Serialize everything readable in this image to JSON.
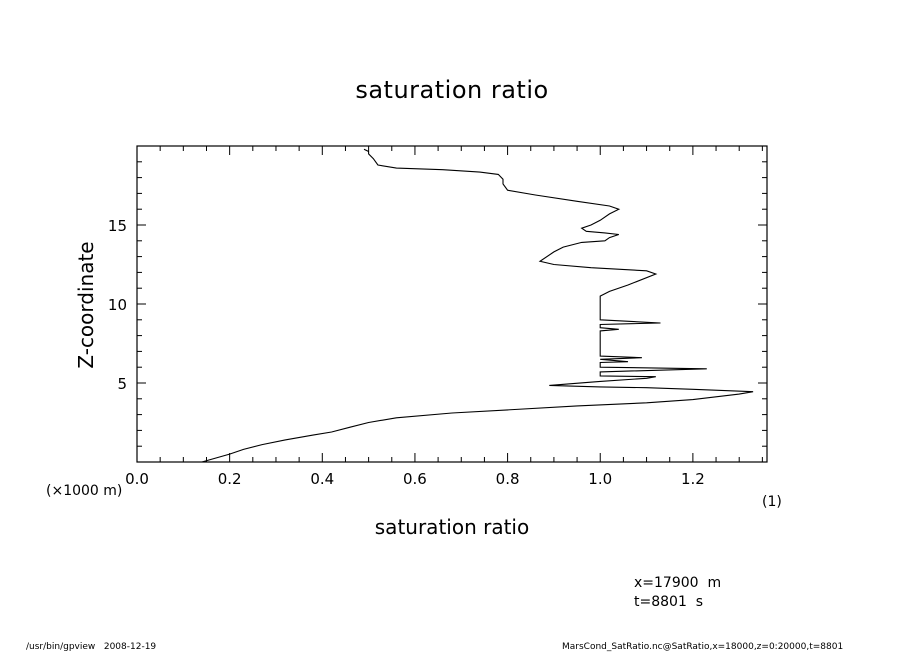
{
  "chart_data": {
    "type": "line",
    "title": "saturation ratio",
    "xlabel": "saturation ratio",
    "ylabel": "Z-coordinate",
    "x_unit": "(1)",
    "y_unit": "(×1000 m)",
    "xlim": [
      0.0,
      1.36
    ],
    "ylim": [
      0.0,
      20.0
    ],
    "x_ticks": [
      "0.0",
      "0.2",
      "0.4",
      "0.6",
      "0.8",
      "1.0",
      "1.2"
    ],
    "y_ticks": [
      "5",
      "10",
      "15"
    ],
    "grid": false,
    "series": [
      {
        "color": "#000000",
        "points": [
          [
            0.14,
            0.0
          ],
          [
            0.2,
            0.5
          ],
          [
            0.23,
            0.8
          ],
          [
            0.27,
            1.1
          ],
          [
            0.32,
            1.4
          ],
          [
            0.38,
            1.7
          ],
          [
            0.42,
            1.9
          ],
          [
            0.46,
            2.2
          ],
          [
            0.5,
            2.5
          ],
          [
            0.56,
            2.8
          ],
          [
            0.68,
            3.1
          ],
          [
            0.8,
            3.3
          ],
          [
            0.95,
            3.55
          ],
          [
            1.1,
            3.75
          ],
          [
            1.2,
            3.95
          ],
          [
            1.3,
            4.3
          ],
          [
            1.33,
            4.45
          ],
          [
            1.2,
            4.6
          ],
          [
            1.1,
            4.7
          ],
          [
            1.0,
            4.75
          ],
          [
            0.89,
            4.85
          ],
          [
            1.0,
            5.1
          ],
          [
            1.1,
            5.3
          ],
          [
            1.12,
            5.4
          ],
          [
            1.0,
            5.45
          ],
          [
            1.0,
            5.7
          ],
          [
            1.23,
            5.9
          ],
          [
            1.0,
            6.0
          ],
          [
            1.0,
            6.3
          ],
          [
            1.06,
            6.35
          ],
          [
            1.0,
            6.5
          ],
          [
            1.09,
            6.6
          ],
          [
            1.0,
            6.7
          ],
          [
            1.0,
            8.3
          ],
          [
            1.04,
            8.4
          ],
          [
            1.0,
            8.5
          ],
          [
            1.0,
            8.7
          ],
          [
            1.13,
            8.8
          ],
          [
            1.0,
            9.0
          ],
          [
            1.0,
            10.5
          ],
          [
            1.02,
            10.8
          ],
          [
            1.06,
            11.2
          ],
          [
            1.12,
            11.9
          ],
          [
            1.1,
            12.1
          ],
          [
            0.98,
            12.3
          ],
          [
            0.9,
            12.5
          ],
          [
            0.87,
            12.7
          ],
          [
            0.9,
            13.3
          ],
          [
            0.92,
            13.6
          ],
          [
            0.96,
            13.9
          ],
          [
            1.01,
            14.0
          ],
          [
            1.02,
            14.2
          ],
          [
            1.04,
            14.4
          ],
          [
            1.01,
            14.5
          ],
          [
            0.97,
            14.6
          ],
          [
            0.96,
            14.8
          ],
          [
            0.98,
            15.0
          ],
          [
            1.0,
            15.3
          ],
          [
            1.02,
            15.7
          ],
          [
            1.04,
            16.0
          ],
          [
            1.02,
            16.2
          ],
          [
            0.95,
            16.5
          ],
          [
            0.86,
            16.9
          ],
          [
            0.8,
            17.2
          ],
          [
            0.79,
            17.6
          ],
          [
            0.79,
            17.9
          ],
          [
            0.78,
            18.2
          ],
          [
            0.74,
            18.35
          ],
          [
            0.66,
            18.5
          ],
          [
            0.56,
            18.6
          ],
          [
            0.52,
            18.8
          ],
          [
            0.51,
            19.2
          ],
          [
            0.5,
            19.5
          ],
          [
            0.5,
            19.65
          ],
          [
            0.49,
            19.8
          ]
        ]
      }
    ]
  },
  "annotations": {
    "info_x": "x=17900  m",
    "info_t": "t=8801  s"
  },
  "footer": {
    "left": "/usr/bin/gpview   2008-12-19",
    "right": "MarsCond_SatRatio.nc@SatRatio,x=18000,z=0:20000,t=8801"
  }
}
